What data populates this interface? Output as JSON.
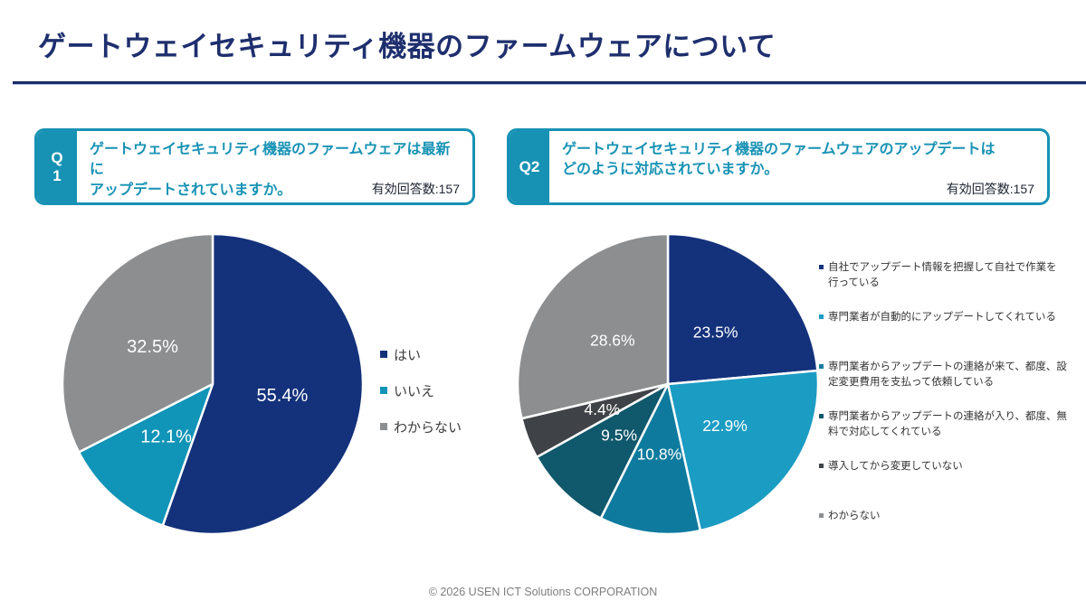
{
  "page": {
    "title": "ゲートウェイセキュリティ機器のファームウェアについて"
  },
  "questions": [
    {
      "badge": "Q\n1",
      "text": "ゲートウェイセキュリティ機器のファームウェアは最新に\nアップデートされていますか。",
      "valid_responses": "有効回答数:157"
    },
    {
      "badge": "Q2",
      "text": "ゲートウェイセキュリティ機器のファームウェアのアップデートは\nどのように対応されていますか。",
      "valid_responses": "有効回答数:157"
    }
  ],
  "chart_data": [
    {
      "type": "pie",
      "question": "Q1",
      "start": "12-oclock-clockwise",
      "labels": [
        "はい",
        "いいえ",
        "わからない"
      ],
      "values": [
        55.4,
        12.1,
        32.5
      ],
      "value_labels": [
        "55.4%",
        "12.1%",
        "32.5%"
      ],
      "colors": [
        "#14327b",
        "#1094b7",
        "#8c8e90"
      ],
      "label_color": "#ffffff",
      "legend_position": "right"
    },
    {
      "type": "pie",
      "question": "Q2",
      "start": "12-oclock-clockwise",
      "labels": [
        "自社でアップデート情報を把握して自社で作業を\n行っている",
        "専門業者が自動的にアップデートしてくれている",
        "専門業者からアップデートの連絡が来て、都度、設\n定変更費用を支払って依頼している",
        "専門業者からアップデートの連絡が入り、都度、無\n料で対応してくれている",
        "導入してから変更していない",
        "わからない"
      ],
      "values": [
        23.5,
        22.9,
        10.8,
        9.5,
        4.4,
        28.6
      ],
      "value_labels": [
        "23.5%",
        "22.9%",
        "10.8%",
        "9.5%",
        "4.4%",
        "28.6%"
      ],
      "colors": [
        "#14327b",
        "#1b9cc3",
        "#0e7b9e",
        "#10586c",
        "#3f4347",
        "#8c8e90"
      ],
      "label_color": "#ffffff",
      "legend_position": "right"
    }
  ],
  "footer": {
    "copyright": "© 2026 USEN ICT Solutions CORPORATION"
  },
  "colors": {
    "accent_teal": "#1792b4",
    "title_navy": "#1e2f6e"
  }
}
